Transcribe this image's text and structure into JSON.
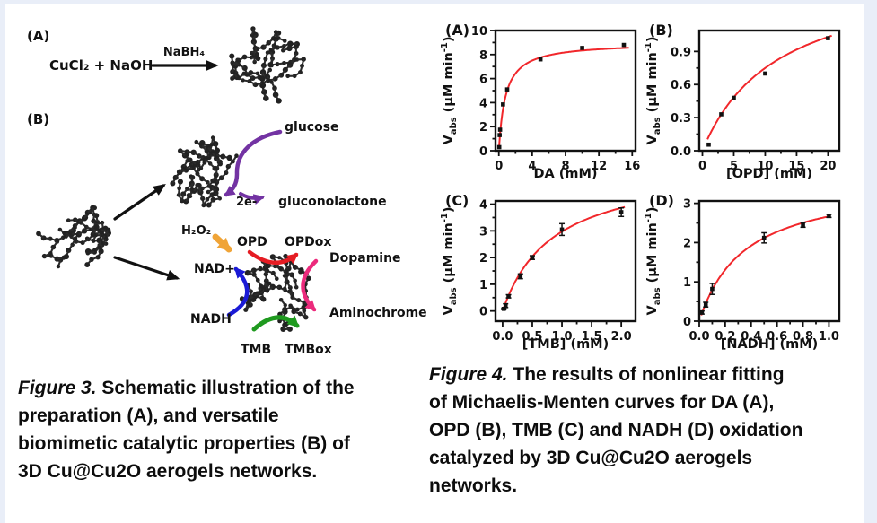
{
  "colors": {
    "fit_curve": "#f1272b",
    "marker": "#111111",
    "frame": "#111111",
    "purple": "#7333a3",
    "red": "#e51c23",
    "pink": "#ec2a7c",
    "blue": "#1b1bd6",
    "green": "#1f9a1f",
    "orange": "#f0a437",
    "black_arrow": "#111111",
    "page_border": "#e9eef8"
  },
  "figure3": {
    "panel_a": "(A)",
    "reaction_reactants": "CuCl₂ + NaOH",
    "reaction_catalyst": "NaBH₄",
    "panel_b": "(B)",
    "glucose": "glucose",
    "electrons": "2e-",
    "gluconolactone": "gluconolactone",
    "h2o2": "H₂O₂",
    "opd": "OPD",
    "opdox": "OPDox",
    "dopamine": "Dopamine",
    "nad_plus": "NAD+",
    "nadh": "NADH",
    "aminochrome": "Aminochrome",
    "tmb": "TMB",
    "tmbox": "TMBox",
    "caption": {
      "prefix": "Figure 3.",
      "line1": " Schematic illustration of the",
      "line2": "preparation (A), and versatile",
      "line3": "biomimetic catalytic properties (B) of",
      "line4": "3D Cu@Cu2O aerogels networks."
    }
  },
  "figure4": {
    "caption": {
      "prefix": "Figure 4.",
      "line1": " The results of nonlinear fitting",
      "line2": "of Michaelis-Menten curves for DA (A),",
      "line3": "OPD (B), TMB (C) and NADH (D) oxidation",
      "line4": "catalyzed by 3D Cu@Cu2O aerogels",
      "line5": "networks."
    }
  },
  "chart_data": [
    {
      "type": "scatter",
      "panel": "(A)",
      "title": "",
      "xlabel": "DA (mM)",
      "ylabel": {
        "base": "V",
        "sub": "abs",
        "mid": " (μM min",
        "sup": "-1",
        "end": ")"
      },
      "xlim": [
        -0.4,
        16.4
      ],
      "ylim": [
        0,
        10
      ],
      "xticks": [
        0,
        4,
        8,
        12,
        16
      ],
      "xtick_labels": [
        "0",
        "4",
        "8",
        "12",
        "16"
      ],
      "yticks": [
        0,
        2,
        4,
        6,
        8,
        10
      ],
      "ytick_labels": [
        "0",
        "2",
        "4",
        "6",
        "8",
        "10"
      ],
      "points": [
        [
          0.05,
          0.3
        ],
        [
          0.1,
          1.3
        ],
        [
          0.15,
          1.75
        ],
        [
          0.5,
          3.85
        ],
        [
          1,
          5.1
        ],
        [
          5,
          7.6
        ],
        [
          10,
          8.55
        ],
        [
          15,
          8.8
        ]
      ],
      "errors": [
        0,
        0,
        0,
        0,
        0,
        0,
        0,
        0
      ],
      "fit": {
        "model": "michaelis-menten",
        "vmax": 9.0,
        "km": 0.8
      },
      "curve_range": [
        0.03,
        15.6
      ],
      "legend": "none",
      "grid": false
    },
    {
      "type": "scatter",
      "panel": "(B)",
      "title": "",
      "xlabel": "[OPD] (mM)",
      "ylabel": {
        "base": "V",
        "sub": "abs",
        "mid": " (μM min",
        "sup": "-1",
        "end": ")"
      },
      "xlim": [
        -0.5,
        21.8
      ],
      "ylim": [
        0,
        1.09
      ],
      "xticks": [
        0,
        5,
        10,
        15,
        20
      ],
      "xtick_labels": [
        "0",
        "5",
        "10",
        "15",
        "20"
      ],
      "yticks": [
        0,
        0.3,
        0.6,
        0.9
      ],
      "ytick_labels": [
        "0.0",
        "0.3",
        "0.6",
        "0.9"
      ],
      "points": [
        [
          1,
          0.055
        ],
        [
          3,
          0.33
        ],
        [
          5,
          0.48
        ],
        [
          10,
          0.7
        ],
        [
          20,
          1.02
        ]
      ],
      "errors": [
        0,
        0,
        0,
        0,
        0
      ],
      "fit": {
        "model": "michaelis-menten",
        "vmax": 1.65,
        "km": 12
      },
      "curve_range": [
        0.8,
        20.6
      ],
      "legend": "none",
      "grid": false
    },
    {
      "type": "scatter",
      "panel": "(C)",
      "title": "",
      "xlabel": "[TMB] (mM)",
      "ylabel": {
        "base": "V",
        "sub": "abs",
        "mid": " (μM min",
        "sup": "-1",
        "end": ")"
      },
      "xlim": [
        -0.12,
        2.24
      ],
      "ylim": [
        -0.38,
        4.12
      ],
      "xticks": [
        0,
        0.5,
        1,
        1.5,
        2
      ],
      "xtick_labels": [
        "0.0",
        "0.5",
        "1.0",
        "1.5",
        "2.0"
      ],
      "yticks": [
        0,
        1,
        2,
        3,
        4
      ],
      "ytick_labels": [
        "0",
        "1",
        "2",
        "3",
        "4"
      ],
      "points": [
        [
          0.02,
          0.08
        ],
        [
          0.05,
          0.2
        ],
        [
          0.1,
          0.55
        ],
        [
          0.3,
          1.3
        ],
        [
          0.5,
          2.0
        ],
        [
          1,
          3.05
        ],
        [
          2,
          3.7
        ]
      ],
      "errors": [
        0.03,
        0.07,
        0.06,
        0.09,
        0.07,
        0.22,
        0.16
      ],
      "fit": {
        "model": "michaelis-menten",
        "vmax": 5.5,
        "km": 0.85
      },
      "curve_range": [
        0.01,
        2.06
      ],
      "legend": "none",
      "grid": false
    },
    {
      "type": "scatter",
      "panel": "(D)",
      "title": "",
      "xlabel": "[NADH] (mM)",
      "ylabel": {
        "base": "V",
        "sub": "abs",
        "mid": " (μM min",
        "sup": "-1",
        "end": ")"
      },
      "xlim": [
        0,
        1.08
      ],
      "ylim": [
        0,
        3.06
      ],
      "xticks": [
        0,
        0.2,
        0.4,
        0.6,
        0.8,
        1.0
      ],
      "xtick_labels": [
        "0.0",
        "0.2",
        "0.4",
        "0.6",
        "0.8",
        "1.0"
      ],
      "yticks": [
        0,
        1,
        2,
        3
      ],
      "ytick_labels": [
        "0",
        "1",
        "2",
        "3"
      ],
      "points": [
        [
          0.02,
          0.22
        ],
        [
          0.05,
          0.42
        ],
        [
          0.1,
          0.82
        ],
        [
          0.5,
          2.12
        ],
        [
          0.8,
          2.45
        ],
        [
          1,
          2.68
        ]
      ],
      "errors": [
        0.04,
        0.06,
        0.14,
        0.13,
        0.06,
        0.04
      ],
      "fit": {
        "model": "michaelis-menten",
        "vmax": 3.6,
        "km": 0.35
      },
      "curve_range": [
        0.015,
        1.0
      ],
      "legend": "none",
      "grid": false
    }
  ]
}
